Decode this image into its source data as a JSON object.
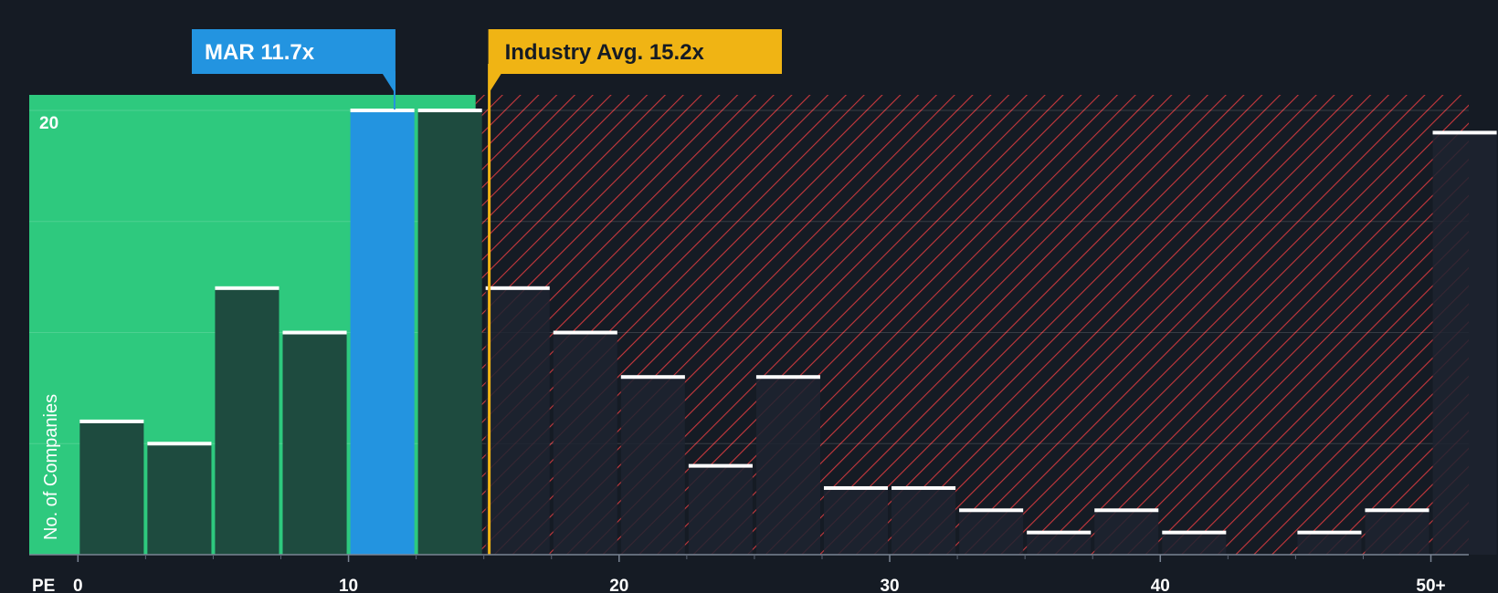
{
  "chart_data": {
    "type": "bar",
    "x_axis_label": "PE",
    "y_axis_label": "No. of Companies",
    "bin_width": 2.5,
    "x_range": [
      -1.8,
      51.4
    ],
    "y_range": [
      0,
      20.7
    ],
    "x_ticks": [
      {
        "value": 0,
        "label": "0"
      },
      {
        "value": 10,
        "label": "10"
      },
      {
        "value": 20,
        "label": "20"
      },
      {
        "value": 30,
        "label": "30"
      },
      {
        "value": 40,
        "label": "40"
      },
      {
        "value": 50,
        "label": "50+"
      }
    ],
    "y_ticks": [
      {
        "value": 20,
        "label": "20"
      }
    ],
    "bars": [
      {
        "x": 0,
        "count": 6
      },
      {
        "x": 2.5,
        "count": 5
      },
      {
        "x": 5,
        "count": 12
      },
      {
        "x": 7.5,
        "count": 10
      },
      {
        "x": 10,
        "count": 20,
        "highlight": true
      },
      {
        "x": 12.5,
        "count": 20
      },
      {
        "x": 15,
        "count": 12
      },
      {
        "x": 17.5,
        "count": 10
      },
      {
        "x": 20,
        "count": 8
      },
      {
        "x": 22.5,
        "count": 4
      },
      {
        "x": 25,
        "count": 8
      },
      {
        "x": 27.5,
        "count": 3
      },
      {
        "x": 30,
        "count": 3
      },
      {
        "x": 32.5,
        "count": 2
      },
      {
        "x": 35,
        "count": 1
      },
      {
        "x": 37.5,
        "count": 2
      },
      {
        "x": 40,
        "count": 1
      },
      {
        "x": 42.5,
        "count": 0
      },
      {
        "x": 45,
        "count": 1
      },
      {
        "x": 47.5,
        "count": 2
      },
      {
        "x": 50,
        "count": 19
      }
    ],
    "company": {
      "ticker": "MAR",
      "value": 11.7,
      "label": "MAR 11.7x"
    },
    "industry_avg": {
      "value": 15.2,
      "label": "Industry Avg. 15.2x"
    },
    "fair_region_end": 14.7,
    "colors": {
      "background": "#151b24",
      "fair_zone": "#2ec97e",
      "bar": "#1e4b3f",
      "bar_in_hatch": "#1d2330",
      "highlight_bar": "#2394e0",
      "cap": "#ffffff",
      "hatch_line": "#c8383d",
      "company_callout": "#2394e0",
      "industry_callout": "#f0b414",
      "industry_line": "#f0b414",
      "grid": "#ffffff"
    }
  }
}
